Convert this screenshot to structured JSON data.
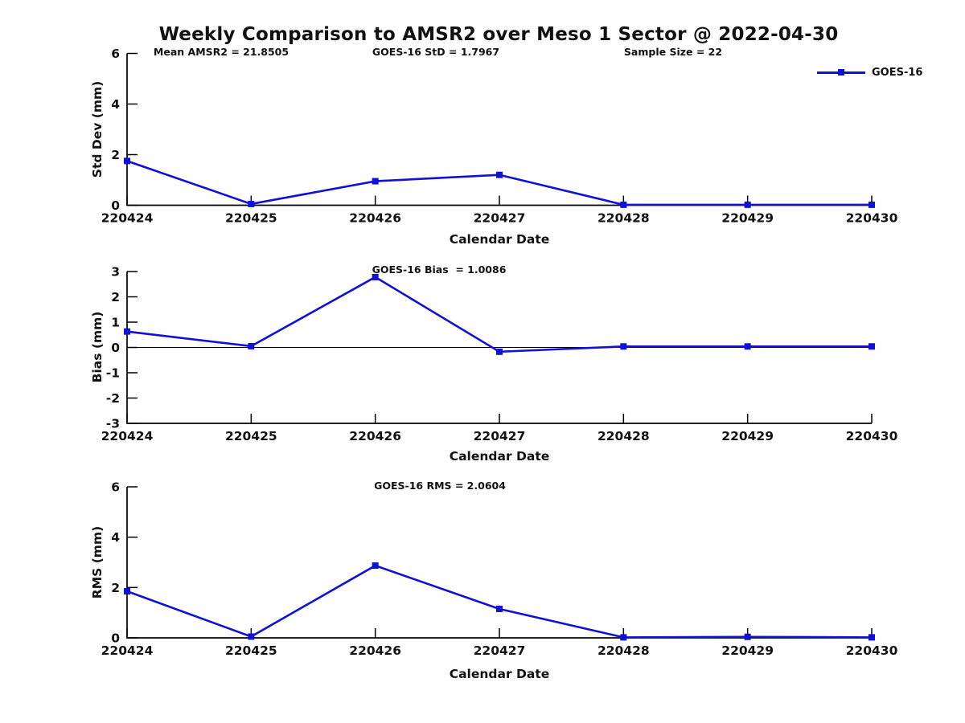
{
  "title": "Weekly Comparison to AMSR2 over Meso 1 Sector @ 2022-04-30",
  "annotations": {
    "mean_amsr2": "Mean AMSR2 = 21.8505",
    "goes16_std": "GOES-16 StD = 1.7967",
    "sample_size": "Sample Size = 22",
    "goes16_bias": "GOES-16 Bias  = 1.0086",
    "goes16_rms": "GOES-16 RMS = 2.0604"
  },
  "legend": {
    "label": "GOES-16",
    "series_color": "#1010d6"
  },
  "colors": {
    "axis": "#000000",
    "text": "#111111",
    "series": "#1010d6"
  },
  "chart_data": [
    {
      "type": "line",
      "panel": "std-dev",
      "x": [
        "220424",
        "220425",
        "220426",
        "220427",
        "220428",
        "220429",
        "220430"
      ],
      "series": [
        {
          "name": "GOES-16",
          "values": [
            1.75,
            0.05,
            0.95,
            1.2,
            0.02,
            0.02,
            0.02
          ]
        }
      ],
      "xlabel": "Calendar Date",
      "ylabel": "Std Dev (mm)",
      "ylim": [
        0,
        6
      ],
      "yticks": [
        0,
        2,
        4,
        6
      ],
      "zero_line": false,
      "grid": false,
      "legend_position": "outside-top-right",
      "marker": "square"
    },
    {
      "type": "line",
      "panel": "bias",
      "x": [
        "220424",
        "220425",
        "220426",
        "220427",
        "220428",
        "220429",
        "220430"
      ],
      "series": [
        {
          "name": "GOES-16",
          "values": [
            0.63,
            0.05,
            2.78,
            -0.17,
            0.04,
            0.04,
            0.04
          ]
        }
      ],
      "xlabel": "Calendar Date",
      "ylabel": "Bias (mm)",
      "ylim": [
        -3,
        3
      ],
      "yticks": [
        -3,
        -2,
        -1,
        0,
        1,
        2,
        3
      ],
      "zero_line": true,
      "grid": false,
      "legend_position": "none",
      "marker": "square"
    },
    {
      "type": "line",
      "panel": "rms",
      "x": [
        "220424",
        "220425",
        "220426",
        "220427",
        "220428",
        "220429",
        "220430"
      ],
      "series": [
        {
          "name": "GOES-16",
          "values": [
            1.85,
            0.05,
            2.87,
            1.15,
            0.02,
            0.04,
            0.02
          ]
        }
      ],
      "xlabel": "Calendar Date",
      "ylabel": "RMS (mm)",
      "ylim": [
        0,
        6
      ],
      "yticks": [
        0,
        2,
        4,
        6
      ],
      "zero_line": false,
      "grid": false,
      "legend_position": "none",
      "marker": "square"
    }
  ]
}
